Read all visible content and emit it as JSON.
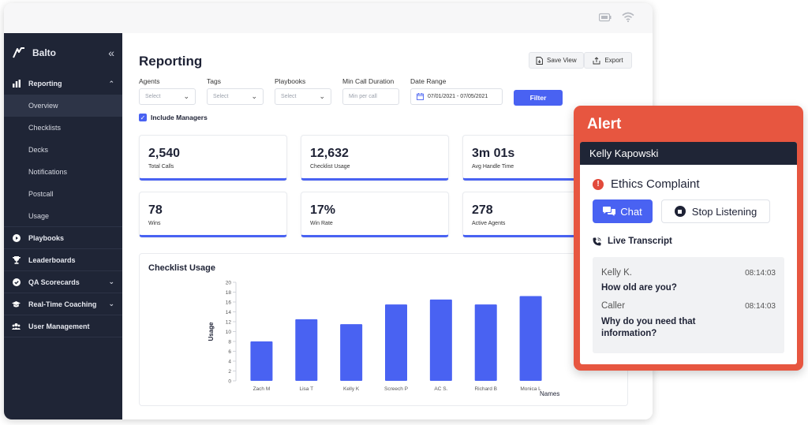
{
  "sidebar": {
    "brand": "Balto",
    "collapse_icon": "«",
    "items": [
      {
        "label": "Reporting",
        "icon": "bar-chart-icon",
        "expanded": true,
        "children": [
          "Overview",
          "Checklists",
          "Decks",
          "Notifications",
          "Postcall",
          "Usage"
        ]
      },
      {
        "label": "Playbooks",
        "icon": "play-circle-icon"
      },
      {
        "label": "Leaderboards",
        "icon": "trophy-icon"
      },
      {
        "label": "QA Scorecards",
        "icon": "check-circle-icon",
        "has_chevron": true
      },
      {
        "label": "Real-Time Coaching",
        "icon": "graduation-cap-icon",
        "has_chevron": true
      },
      {
        "label": "User Management",
        "icon": "users-icon"
      }
    ],
    "active_child": "Overview"
  },
  "header": {
    "title": "Reporting",
    "save_view": "Save View",
    "export": "Export"
  },
  "filters": {
    "agents": {
      "label": "Agents",
      "placeholder": "Select"
    },
    "tags": {
      "label": "Tags",
      "placeholder": "Select"
    },
    "playbooks": {
      "label": "Playbooks",
      "placeholder": "Select"
    },
    "min_call_duration": {
      "label": "Min Call Duration",
      "placeholder": "Min per call"
    },
    "date_range": {
      "label": "Date Range",
      "value": "07/01/2021 - 07/05/2021"
    },
    "filter_button": "Filter",
    "include_managers": "Include Managers",
    "include_managers_checked": true
  },
  "stats": [
    {
      "value": "2,540",
      "label": "Total Calls"
    },
    {
      "value": "12,632",
      "label": "Checklist Usage"
    },
    {
      "value": "3m 01s",
      "label": "Avg Handle Time"
    },
    {
      "value": "78",
      "label": "Wins"
    },
    {
      "value": "17%",
      "label": "Win Rate"
    },
    {
      "value": "278",
      "label": "Active Agents"
    }
  ],
  "checklist_chart": {
    "title": "Checklist Usage",
    "ylabel": "Usage",
    "xlabel": "Names"
  },
  "chart_data": {
    "type": "bar",
    "title": "Checklist Usage",
    "xlabel": "Names",
    "ylabel": "Usage",
    "categories": [
      "Zach M",
      "Lisa T",
      "Kelly K",
      "Screech P",
      "AC S.",
      "Richard B",
      "Monica L"
    ],
    "values": [
      8,
      12.5,
      11.5,
      15.5,
      16.5,
      15.5,
      17.2
    ],
    "ylim": [
      0,
      20
    ],
    "yticks": [
      0,
      2,
      4,
      6,
      8,
      10,
      12,
      14,
      16,
      18,
      20
    ],
    "color": "#4962f2"
  },
  "alert": {
    "title": "Alert",
    "agent": "Kelly Kapowski",
    "complaint": "Ethics Complaint",
    "chat_button": "Chat",
    "stop_button": "Stop Listening",
    "transcript_label": "Live Transcript",
    "transcript": [
      {
        "speaker": "Kelly K.",
        "time": "08:14:03",
        "message": "How old are you?"
      },
      {
        "speaker": "Caller",
        "time": "08:14:03",
        "message": "Why do you need that information?"
      }
    ],
    "color": "#e75640"
  }
}
